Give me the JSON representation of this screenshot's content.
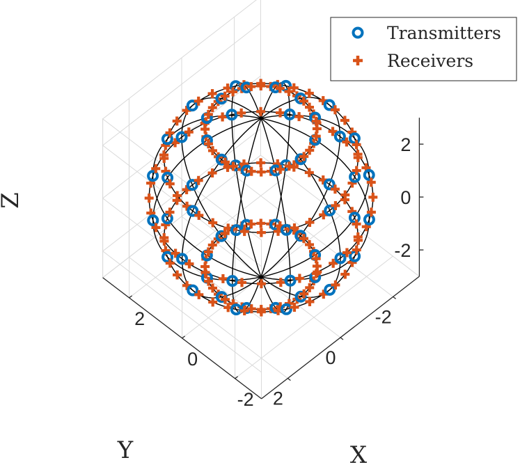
{
  "chart_data": {
    "type": "scatter3d",
    "xlabel": "X",
    "ylabel": "Y",
    "zlabel": "Z",
    "xlim": [
      -3,
      3
    ],
    "ylim": [
      -3,
      3
    ],
    "zlim": [
      -3,
      3
    ],
    "x_ticks": [
      "-2",
      "0",
      "2"
    ],
    "y_ticks": [
      "-2",
      "0",
      "2"
    ],
    "z_ticks": [
      "-2",
      "0",
      "2"
    ],
    "sphere_radius": 3,
    "grid": true,
    "legend_position": "top-right",
    "wireframe": {
      "latitudes_deg": [
        -60,
        -30,
        0,
        30,
        60
      ],
      "meridians_deg": [
        0,
        30,
        60,
        90,
        120,
        150
      ]
    },
    "series": [
      {
        "name": "Transmitters",
        "marker": "circle",
        "color": "#0072BD",
        "latitudes_deg": [
          -60,
          -30,
          0,
          30,
          60
        ],
        "points_per_latitude": 12,
        "phase_offset_deg": 0
      },
      {
        "name": "Receivers",
        "marker": "plus",
        "color": "#D95319",
        "latitudes_deg": [
          -60,
          -30,
          0,
          30,
          60
        ],
        "points_per_latitude": 36,
        "phase_offset_deg": 5
      }
    ]
  }
}
